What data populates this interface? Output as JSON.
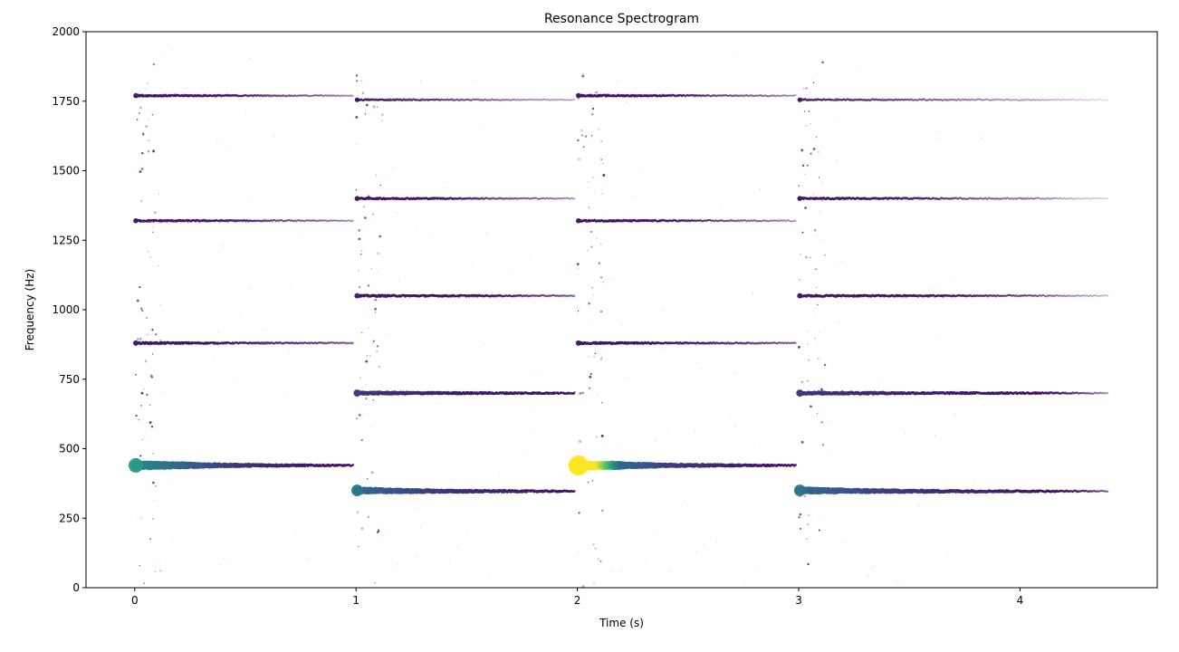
{
  "chart_data": {
    "type": "scatter",
    "title": "Resonance Spectrogram",
    "xlabel": "Time (s)",
    "ylabel": "Frequency (Hz)",
    "xlim": [
      -0.22,
      4.62
    ],
    "ylim": [
      0,
      2000
    ],
    "xticks": [
      0,
      1,
      2,
      3,
      4
    ],
    "yticks": [
      0,
      250,
      500,
      750,
      1000,
      1250,
      1500,
      1750,
      2000
    ],
    "grid": false,
    "colormap": "viridis",
    "notes_window_s": [
      0,
      1,
      2,
      3
    ],
    "series": [
      {
        "x": [
          0.0,
          0.2,
          0.4,
          0.6,
          0.8,
          0.99
        ],
        "y": [
          440,
          440,
          440,
          440,
          440,
          440
        ],
        "amplitude": [
          0.3,
          0.22,
          0.12,
          0.08,
          0.05,
          0.03
        ]
      },
      {
        "x": [
          0.0,
          0.2,
          0.4,
          0.6,
          0.8,
          0.99
        ],
        "y": [
          880,
          880,
          880,
          880,
          880,
          880
        ],
        "amplitude": [
          0.05,
          0.04,
          0.03,
          0.025,
          0.02,
          0.015
        ]
      },
      {
        "x": [
          0.0,
          0.2,
          0.4,
          0.6,
          0.8,
          0.99
        ],
        "y": [
          1320,
          1320,
          1320,
          1320,
          1320,
          1320
        ],
        "amplitude": [
          0.04,
          0.035,
          0.03,
          0.02,
          0.015,
          0.01
        ]
      },
      {
        "x": [
          0.0,
          0.2,
          0.4,
          0.6,
          0.8,
          0.99
        ],
        "y": [
          1770,
          1770,
          1770,
          1770,
          1770,
          1770
        ],
        "amplitude": [
          0.04,
          0.035,
          0.03,
          0.02,
          0.015,
          0.01
        ]
      },
      {
        "x": [
          1.0,
          1.2,
          1.4,
          1.6,
          1.8,
          1.99
        ],
        "y": [
          350,
          348,
          347,
          347,
          347,
          347
        ],
        "amplitude": [
          0.22,
          0.15,
          0.1,
          0.07,
          0.05,
          0.03
        ]
      },
      {
        "x": [
          1.0,
          1.2,
          1.4,
          1.6,
          1.8,
          1.99
        ],
        "y": [
          700,
          700,
          700,
          700,
          700,
          700
        ],
        "amplitude": [
          0.1,
          0.08,
          0.06,
          0.05,
          0.04,
          0.03
        ]
      },
      {
        "x": [
          1.0,
          1.2,
          1.4,
          1.6,
          1.8,
          1.99
        ],
        "y": [
          1050,
          1050,
          1050,
          1050,
          1050,
          1050
        ],
        "amplitude": [
          0.05,
          0.04,
          0.035,
          0.03,
          0.02,
          0.015
        ]
      },
      {
        "x": [
          1.0,
          1.2,
          1.4,
          1.6,
          1.8,
          1.99
        ],
        "y": [
          1400,
          1400,
          1400,
          1400,
          1400,
          1400
        ],
        "amplitude": [
          0.04,
          0.035,
          0.03,
          0.02,
          0.015,
          0.01
        ]
      },
      {
        "x": [
          1.0,
          1.2,
          1.4,
          1.6,
          1.8,
          1.99
        ],
        "y": [
          1755,
          1755,
          1755,
          1755,
          1755,
          1755
        ],
        "amplitude": [
          0.03,
          0.025,
          0.02,
          0.015,
          0.01,
          0.008
        ]
      },
      {
        "x": [
          2.0,
          2.2,
          2.4,
          2.6,
          2.8,
          2.99
        ],
        "y": [
          440,
          440,
          440,
          440,
          440,
          440
        ],
        "amplitude": [
          1.0,
          0.22,
          0.12,
          0.08,
          0.05,
          0.03
        ]
      },
      {
        "x": [
          2.0,
          2.2,
          2.4,
          2.6,
          2.8,
          2.99
        ],
        "y": [
          880,
          880,
          880,
          880,
          880,
          880
        ],
        "amplitude": [
          0.05,
          0.04,
          0.03,
          0.025,
          0.02,
          0.015
        ]
      },
      {
        "x": [
          2.0,
          2.2,
          2.4,
          2.6,
          2.8,
          2.99
        ],
        "y": [
          1320,
          1320,
          1320,
          1320,
          1320,
          1320
        ],
        "amplitude": [
          0.04,
          0.035,
          0.03,
          0.02,
          0.015,
          0.01
        ]
      },
      {
        "x": [
          2.0,
          2.2,
          2.4,
          2.6,
          2.8,
          2.99
        ],
        "y": [
          1770,
          1770,
          1770,
          1770,
          1770,
          1770
        ],
        "amplitude": [
          0.04,
          0.035,
          0.03,
          0.02,
          0.015,
          0.01
        ]
      },
      {
        "x": [
          3.0,
          3.25,
          3.5,
          3.75,
          4.0,
          4.2,
          4.4
        ],
        "y": [
          350,
          348,
          347,
          347,
          347,
          347,
          347
        ],
        "amplitude": [
          0.22,
          0.15,
          0.1,
          0.07,
          0.05,
          0.03,
          0.015
        ]
      },
      {
        "x": [
          3.0,
          3.25,
          3.5,
          3.75,
          4.0,
          4.2,
          4.4
        ],
        "y": [
          700,
          700,
          700,
          700,
          700,
          700,
          700
        ],
        "amplitude": [
          0.1,
          0.08,
          0.06,
          0.05,
          0.04,
          0.025,
          0.01
        ]
      },
      {
        "x": [
          3.0,
          3.25,
          3.5,
          3.75,
          4.0,
          4.2,
          4.4
        ],
        "y": [
          1050,
          1050,
          1050,
          1050,
          1050,
          1050,
          1050
        ],
        "amplitude": [
          0.05,
          0.04,
          0.035,
          0.03,
          0.02,
          0.012,
          0.006
        ]
      },
      {
        "x": [
          3.0,
          3.25,
          3.5,
          3.75,
          4.0,
          4.2,
          4.4
        ],
        "y": [
          1400,
          1400,
          1400,
          1400,
          1400,
          1400,
          1400
        ],
        "amplitude": [
          0.04,
          0.035,
          0.03,
          0.02,
          0.015,
          0.008,
          0.004
        ]
      },
      {
        "x": [
          3.0,
          3.25,
          3.5,
          3.75,
          4.0,
          4.2,
          4.4
        ],
        "y": [
          1755,
          1755,
          1755,
          1755,
          1755,
          1755,
          1755
        ],
        "amplitude": [
          0.03,
          0.025,
          0.02,
          0.015,
          0.01,
          0.006,
          0.003
        ]
      }
    ]
  }
}
